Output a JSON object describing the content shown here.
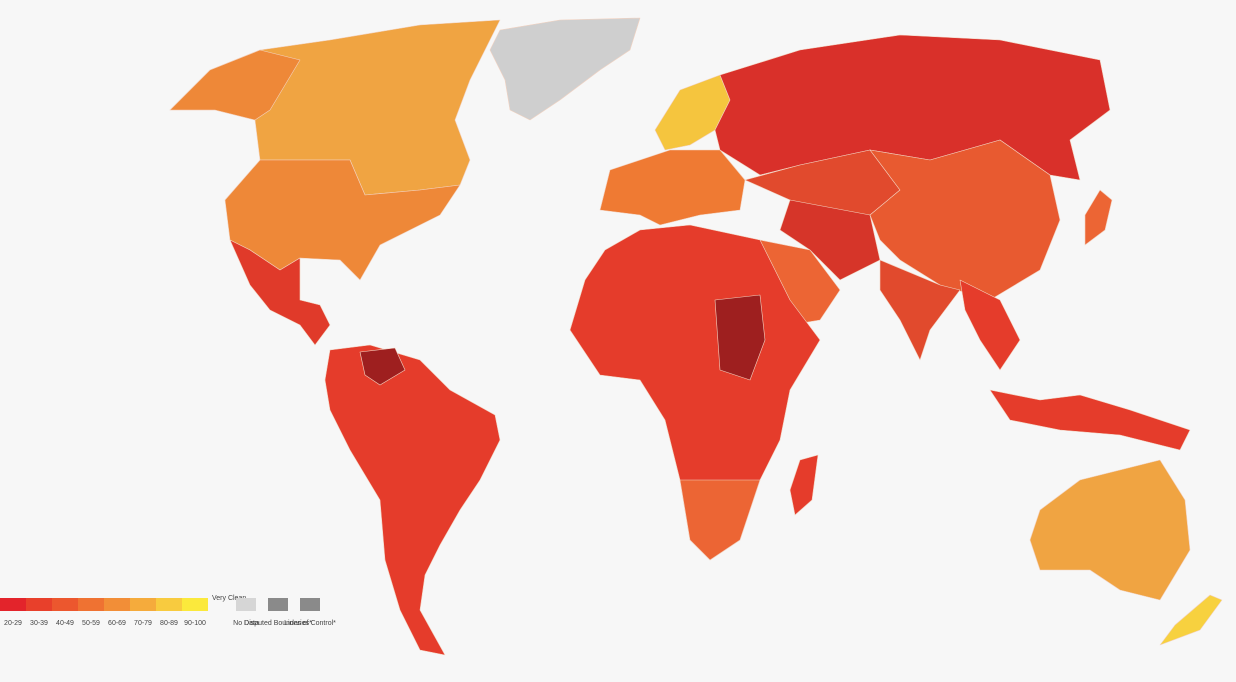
{
  "legend": {
    "bins": [
      {
        "label": "20-29",
        "color": "#e3242b"
      },
      {
        "label": "30-39",
        "color": "#e8402b"
      },
      {
        "label": "40-49",
        "color": "#ec572e"
      },
      {
        "label": "50-59",
        "color": "#ef7232"
      },
      {
        "label": "60-69",
        "color": "#f28e37"
      },
      {
        "label": "70-79",
        "color": "#f5ab3c"
      },
      {
        "label": "80-89",
        "color": "#f8cb3f"
      },
      {
        "label": "90-100",
        "color": "#fbe93c"
      }
    ],
    "end_label": "Very Clean",
    "extras": [
      {
        "label": "No Data",
        "color": "#d6d6d6"
      },
      {
        "label": "Disputed Boundaries*",
        "color": "#8a8a8a"
      },
      {
        "label": "Lines of Control*",
        "color": "#8a8a8a"
      }
    ]
  }
}
